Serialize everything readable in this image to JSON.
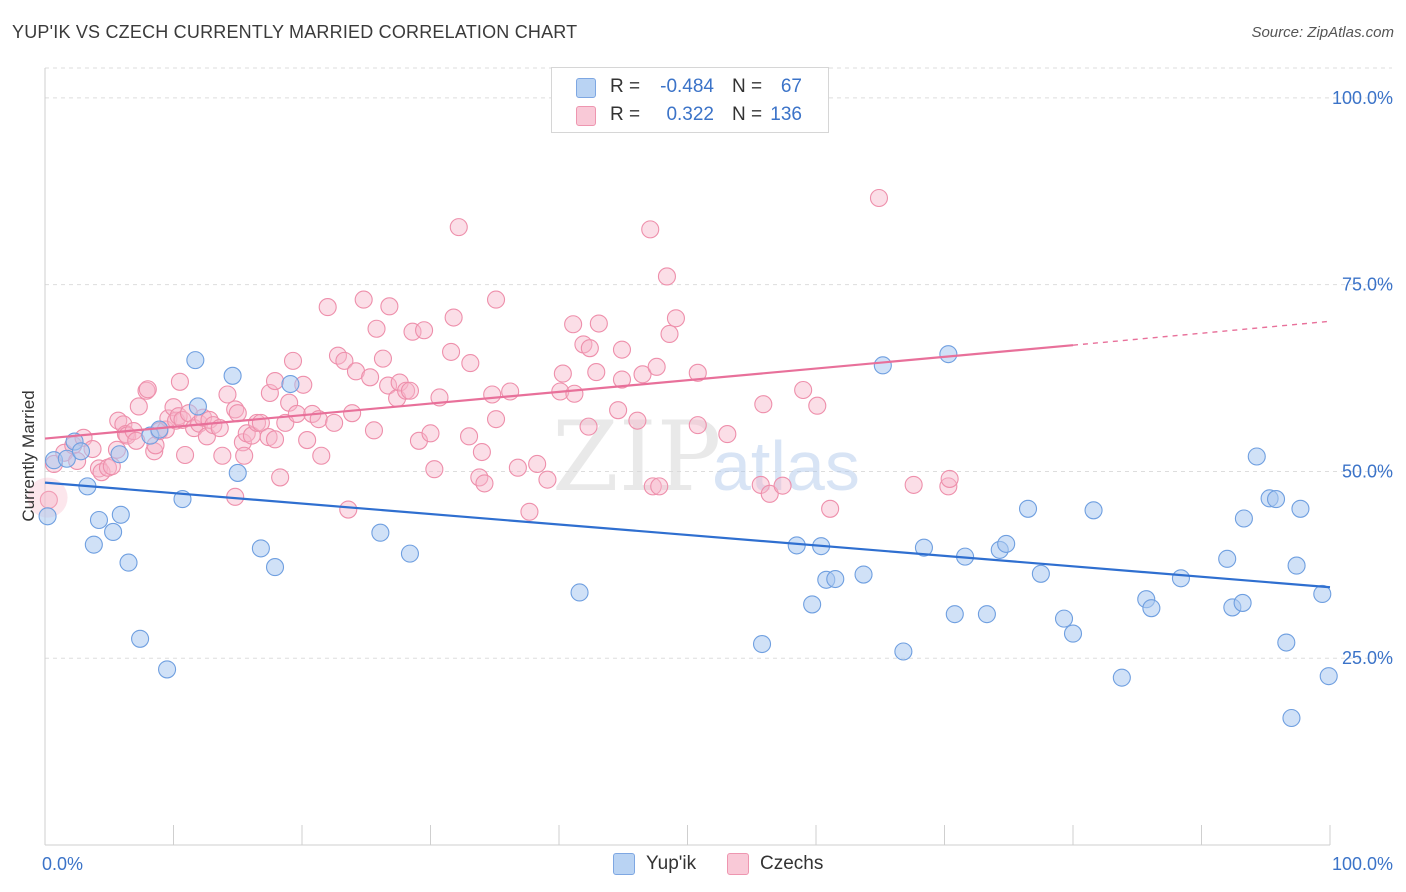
{
  "title": "YUP'IK VS CZECH CURRENTLY MARRIED CORRELATION CHART",
  "source": "Source: ZipAtlas.com",
  "watermark": {
    "zip": "ZIP",
    "atlas": "atlas"
  },
  "legend": {
    "rows": [
      {
        "r_label": "R =",
        "r_value": "-0.484",
        "n_label": "N =",
        "n_value": "67"
      },
      {
        "r_label": "R =",
        "r_value": "0.322",
        "n_label": "N =",
        "n_value": "136"
      }
    ]
  },
  "bottom_legend": {
    "yupik": "Yup'ik",
    "czechs": "Czechs"
  },
  "colors": {
    "yupik_fill": "#a9c8f0",
    "yupik_stroke": "#6f9fe0",
    "yupik_line": "#2f6fd0",
    "czech_fill": "#f6b6c9",
    "czech_stroke": "#ee8fab",
    "czech_line": "#e8709a",
    "axis_text": "#3b73c8",
    "grid": "#dddddd"
  },
  "chart_data": {
    "type": "scatter",
    "title": "YUP'IK VS CZECH CURRENTLY MARRIED CORRELATION CHART",
    "xlabel": "",
    "ylabel": "Currently Married",
    "xlim": [
      0,
      100
    ],
    "ylim": [
      0,
      104
    ],
    "x_tick_labels": [
      "0.0%",
      "100.0%"
    ],
    "y_ticks": [
      25,
      50,
      75,
      100
    ],
    "y_tick_labels": [
      "25.0%",
      "50.0%",
      "75.0%",
      "100.0%"
    ],
    "grid": true,
    "legend_position": "top-center",
    "series": [
      {
        "name": "Yup'ik",
        "R": -0.484,
        "N": 67,
        "trend": {
          "x": [
            0,
            100
          ],
          "y": [
            48.5,
            34.5
          ]
        },
        "points": [
          [
            0.2,
            44
          ],
          [
            0.7,
            51.5
          ],
          [
            1.7,
            51.7
          ],
          [
            2.3,
            54
          ],
          [
            2.8,
            52.7
          ],
          [
            3.3,
            48
          ],
          [
            3.8,
            40.2
          ],
          [
            4.2,
            43.5
          ],
          [
            5.3,
            41.9
          ],
          [
            5.8,
            52.3
          ],
          [
            5.9,
            44.2
          ],
          [
            6.5,
            37.8
          ],
          [
            7.4,
            27.6
          ],
          [
            8.2,
            54.8
          ],
          [
            8.9,
            55.6
          ],
          [
            9.5,
            23.5
          ],
          [
            10.7,
            46.3
          ],
          [
            11.7,
            64.9
          ],
          [
            11.9,
            58.7
          ],
          [
            14.6,
            62.8
          ],
          [
            15,
            49.8
          ],
          [
            16.8,
            39.7
          ],
          [
            17.9,
            37.2
          ],
          [
            19.1,
            61.7
          ],
          [
            26.1,
            41.8
          ],
          [
            28.4,
            39
          ],
          [
            41.6,
            33.8
          ],
          [
            55.8,
            26.9
          ],
          [
            58.5,
            40.1
          ],
          [
            59.7,
            32.2
          ],
          [
            60.4,
            40
          ],
          [
            60.8,
            35.5
          ],
          [
            61.5,
            35.6
          ],
          [
            63.7,
            36.2
          ],
          [
            65.2,
            64.2
          ],
          [
            66.8,
            25.9
          ],
          [
            68.4,
            39.8
          ],
          [
            70.3,
            65.7
          ],
          [
            70.8,
            30.9
          ],
          [
            71.6,
            38.6
          ],
          [
            73.3,
            30.9
          ],
          [
            74.3,
            39.5
          ],
          [
            74.8,
            40.3
          ],
          [
            76.5,
            45
          ],
          [
            77.5,
            36.3
          ],
          [
            79.3,
            30.3
          ],
          [
            80,
            28.3
          ],
          [
            81.6,
            44.8
          ],
          [
            83.8,
            22.4
          ],
          [
            85.7,
            32.9
          ],
          [
            86.1,
            31.7
          ],
          [
            88.4,
            35.7
          ],
          [
            92,
            38.3
          ],
          [
            92.4,
            31.8
          ],
          [
            93.2,
            32.4
          ],
          [
            93.3,
            43.7
          ],
          [
            94.3,
            52
          ],
          [
            95.3,
            46.4
          ],
          [
            95.8,
            46.3
          ],
          [
            96.6,
            27.1
          ],
          [
            97,
            17
          ],
          [
            97.4,
            37.4
          ],
          [
            97.7,
            45
          ],
          [
            99.4,
            33.6
          ],
          [
            99.9,
            22.6
          ]
        ]
      },
      {
        "name": "Czechs",
        "R": 0.322,
        "N": 136,
        "trend": {
          "x": [
            0,
            80
          ],
          "y": [
            54.4,
            66.9
          ]
        },
        "trend_dashed": {
          "x": [
            80,
            100
          ],
          "y": [
            66.9,
            70.1
          ]
        },
        "points": [
          [
            0.3,
            46.2
          ],
          [
            0.7,
            51
          ],
          [
            1.5,
            52.5
          ],
          [
            2.2,
            53.5
          ],
          [
            2.5,
            51.4
          ],
          [
            3,
            54.5
          ],
          [
            3.7,
            53
          ],
          [
            4.2,
            50.4
          ],
          [
            4.4,
            49.9
          ],
          [
            4.9,
            50.5
          ],
          [
            5.2,
            50.7
          ],
          [
            5.6,
            52.9
          ],
          [
            5.7,
            56.8
          ],
          [
            6.1,
            56.3
          ],
          [
            6.3,
            55
          ],
          [
            6.4,
            54.8
          ],
          [
            6.9,
            55.4
          ],
          [
            7.1,
            54.1
          ],
          [
            7.3,
            58.7
          ],
          [
            7.9,
            60.8
          ],
          [
            8,
            61
          ],
          [
            8.5,
            52.7
          ],
          [
            8.6,
            53.5
          ],
          [
            8.9,
            55.4
          ],
          [
            9.4,
            55.6
          ],
          [
            9.6,
            57.1
          ],
          [
            10,
            58.6
          ],
          [
            10.2,
            56.8
          ],
          [
            10.4,
            57.4
          ],
          [
            10.5,
            62
          ],
          [
            10.7,
            56.9
          ],
          [
            10.9,
            52.2
          ],
          [
            11.2,
            57.8
          ],
          [
            11.6,
            55.8
          ],
          [
            12,
            56.4
          ],
          [
            12.3,
            57.2
          ],
          [
            12.6,
            54.7
          ],
          [
            12.8,
            56.9
          ],
          [
            13.1,
            56.2
          ],
          [
            13.6,
            55.8
          ],
          [
            13.8,
            52.1
          ],
          [
            14.2,
            60.3
          ],
          [
            14.8,
            58.3
          ],
          [
            14.8,
            46.6
          ],
          [
            15,
            57.8
          ],
          [
            15.4,
            53.9
          ],
          [
            15.5,
            52.1
          ],
          [
            15.7,
            55.1
          ],
          [
            16.1,
            54.8
          ],
          [
            16.5,
            56.5
          ],
          [
            16.8,
            56.5
          ],
          [
            17.4,
            54.6
          ],
          [
            17.5,
            60.5
          ],
          [
            17.9,
            62.1
          ],
          [
            17.9,
            54.3
          ],
          [
            18.3,
            49.2
          ],
          [
            18.7,
            56.5
          ],
          [
            19,
            59.2
          ],
          [
            19.3,
            64.8
          ],
          [
            19.6,
            57.7
          ],
          [
            20.1,
            61.6
          ],
          [
            20.4,
            54.2
          ],
          [
            20.8,
            57.7
          ],
          [
            21.3,
            57
          ],
          [
            21.5,
            52.1
          ],
          [
            22,
            72
          ],
          [
            22.5,
            56.5
          ],
          [
            22.8,
            65.5
          ],
          [
            23.3,
            64.8
          ],
          [
            23.6,
            44.9
          ],
          [
            23.9,
            57.8
          ],
          [
            24.2,
            63.4
          ],
          [
            24.8,
            73
          ],
          [
            25.3,
            62.6
          ],
          [
            25.6,
            55.5
          ],
          [
            25.8,
            69.1
          ],
          [
            26.3,
            65.1
          ],
          [
            26.7,
            61.5
          ],
          [
            26.8,
            72.1
          ],
          [
            27.4,
            59.8
          ],
          [
            27.6,
            61.9
          ],
          [
            28.1,
            60.8
          ],
          [
            28.4,
            60.8
          ],
          [
            28.6,
            68.7
          ],
          [
            29.1,
            54.1
          ],
          [
            29.5,
            68.9
          ],
          [
            30,
            55.1
          ],
          [
            30.3,
            50.3
          ],
          [
            30.7,
            59.9
          ],
          [
            31.6,
            66
          ],
          [
            31.8,
            70.6
          ],
          [
            32.2,
            82.7
          ],
          [
            33,
            54.7
          ],
          [
            33.1,
            64.5
          ],
          [
            33.8,
            49.2
          ],
          [
            34,
            52.6
          ],
          [
            34.2,
            48.4
          ],
          [
            34.8,
            60.3
          ],
          [
            35.1,
            73
          ],
          [
            35.1,
            57
          ],
          [
            36.2,
            60.7
          ],
          [
            36.8,
            50.5
          ],
          [
            37.7,
            44.6
          ],
          [
            38.3,
            51
          ],
          [
            39.1,
            48.9
          ],
          [
            40.1,
            60.7
          ],
          [
            40.3,
            63.1
          ],
          [
            41.1,
            69.7
          ],
          [
            41.2,
            60.4
          ],
          [
            41.9,
            67
          ],
          [
            42.3,
            56
          ],
          [
            42.4,
            66.5
          ],
          [
            42.9,
            63.3
          ],
          [
            43.1,
            69.8
          ],
          [
            44.6,
            58.2
          ],
          [
            44.9,
            62.3
          ],
          [
            44.9,
            66.3
          ],
          [
            46.1,
            56.8
          ],
          [
            46.5,
            63
          ],
          [
            47.1,
            82.4
          ],
          [
            47.3,
            48
          ],
          [
            47.6,
            64
          ],
          [
            47.8,
            48
          ],
          [
            48.4,
            76.1
          ],
          [
            48.6,
            68.4
          ],
          [
            49.1,
            70.5
          ],
          [
            50.8,
            56.2
          ],
          [
            50.8,
            63.2
          ],
          [
            53.1,
            55
          ],
          [
            55.9,
            59
          ],
          [
            55.7,
            48.2
          ],
          [
            56.4,
            47
          ],
          [
            57.4,
            48.1
          ],
          [
            59,
            60.9
          ],
          [
            60.1,
            58.8
          ],
          [
            61.1,
            45
          ],
          [
            64.9,
            86.6
          ],
          [
            67.6,
            48.2
          ],
          [
            70.3,
            48
          ],
          [
            70.4,
            49
          ]
        ]
      }
    ]
  }
}
